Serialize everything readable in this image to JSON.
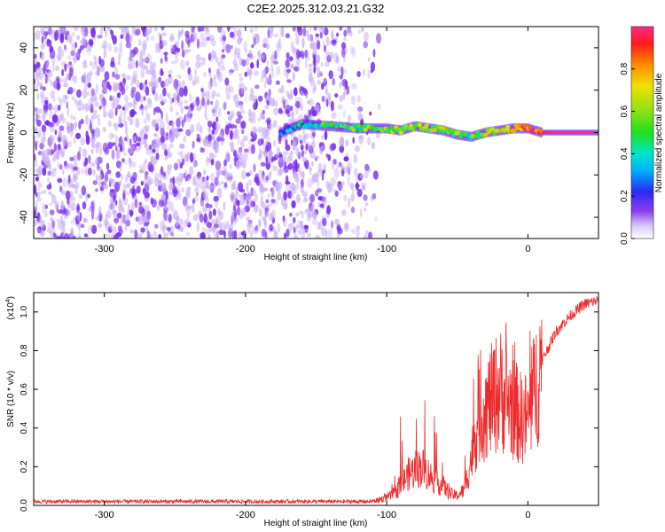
{
  "title": "C2E2.2025.312.03.21.G32",
  "chart_data": [
    {
      "type": "heatmap",
      "name": "spectrogram",
      "xlabel": "Height of straight line (km)",
      "ylabel": "Frequency (Hz)",
      "xlim": [
        -350,
        50
      ],
      "ylim": [
        -50,
        50
      ],
      "xticks": [
        -300,
        -200,
        -100,
        0
      ],
      "yticks": [
        -40,
        -20,
        0,
        20,
        40
      ],
      "noise_region_km": [
        -350,
        -105
      ],
      "signal_track": {
        "x": [
          -175,
          -160,
          -140,
          -120,
          -100,
          -90,
          -80,
          -70,
          -60,
          -50,
          -40,
          -30,
          -20,
          -10,
          0,
          10,
          20,
          30,
          40,
          50
        ],
        "freq_hz": [
          0,
          4,
          3,
          2,
          2,
          1,
          3,
          2,
          1,
          -1,
          -2,
          0,
          1,
          2,
          2,
          0,
          0,
          0,
          0,
          0
        ],
        "amplitude": [
          0.25,
          0.4,
          0.45,
          0.5,
          0.55,
          0.6,
          0.55,
          0.6,
          0.6,
          0.55,
          0.5,
          0.6,
          0.7,
          0.8,
          0.9,
          0.95,
          1.0,
          1.0,
          1.0,
          1.0
        ]
      },
      "colorbar": {
        "label": "Normalized spectral amplitude",
        "range": [
          0,
          1
        ],
        "ticks": [
          "0.0",
          "0.2",
          "0.4",
          "0.6",
          "0.8"
        ],
        "tick_values": [
          0,
          0.2,
          0.4,
          0.6,
          0.8
        ]
      }
    },
    {
      "type": "line",
      "name": "snr",
      "xlabel": "Height of straight line (km)",
      "ylabel": "SNR (10 * v/v)",
      "yscale_label": "(x10",
      "yscale_exp": "4",
      "yscale_close": ")",
      "xlim": [
        -350,
        50
      ],
      "ylim": [
        0,
        1.1
      ],
      "xticks": [
        -300,
        -200,
        -100,
        0
      ],
      "yticks": [
        "0.0",
        "0.2",
        "0.4",
        "0.6",
        "0.8",
        "1.0"
      ],
      "ytick_values": [
        0,
        0.2,
        0.4,
        0.6,
        0.8,
        1.0
      ],
      "color": "#ee2a2a",
      "x": [
        -350,
        -300,
        -250,
        -200,
        -150,
        -110,
        -100,
        -95,
        -90,
        -85,
        -80,
        -75,
        -70,
        -65,
        -60,
        -55,
        -50,
        -45,
        -40,
        -35,
        -30,
        -25,
        -20,
        -15,
        -10,
        -5,
        0,
        10,
        20,
        30,
        40,
        50
      ],
      "y": [
        0.02,
        0.02,
        0.02,
        0.02,
        0.02,
        0.02,
        0.04,
        0.06,
        0.1,
        0.16,
        0.18,
        0.2,
        0.16,
        0.12,
        0.1,
        0.06,
        0.05,
        0.08,
        0.25,
        0.45,
        0.5,
        0.55,
        0.6,
        0.55,
        0.5,
        0.45,
        0.45,
        0.75,
        0.9,
        0.98,
        1.04,
        1.06
      ]
    }
  ]
}
